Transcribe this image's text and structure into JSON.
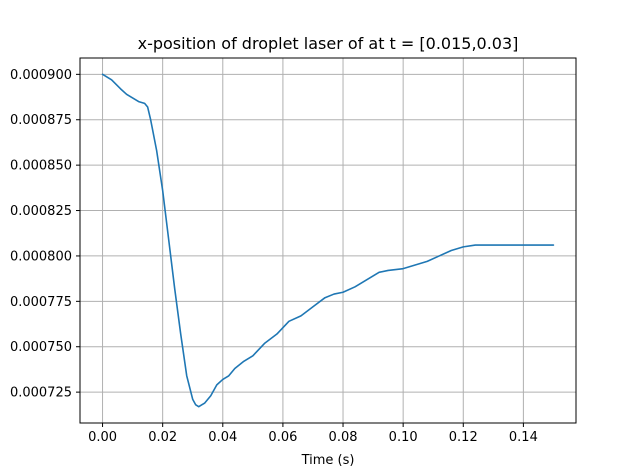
{
  "chart_data": {
    "type": "line",
    "title": "x-position of droplet laser of at t = [0.015,0.03]",
    "xlabel": "Time (s)",
    "ylabel": "",
    "xlim": [
      -0.0075,
      0.1575
    ],
    "ylim": [
      0.000708,
      0.000909
    ],
    "xticks": [
      0.0,
      0.02,
      0.04,
      0.06,
      0.08,
      0.1,
      0.12,
      0.14
    ],
    "xtick_labels": [
      "0.00",
      "0.02",
      "0.04",
      "0.06",
      "0.08",
      "0.10",
      "0.12",
      "0.14"
    ],
    "yticks": [
      0.000725,
      0.00075,
      0.000775,
      0.0008,
      0.000825,
      0.00085,
      0.000875,
      0.0009
    ],
    "ytick_labels": [
      "0.000725",
      "0.000750",
      "0.000775",
      "0.000800",
      "0.000825",
      "0.000850",
      "0.000875",
      "0.000900"
    ],
    "grid": true,
    "line_color": "#1f77b4",
    "grid_color": "#b0b0b0",
    "series": [
      {
        "x": [
          0.0,
          0.003,
          0.006,
          0.008,
          0.01,
          0.012,
          0.014,
          0.015,
          0.016,
          0.018,
          0.02,
          0.022,
          0.024,
          0.026,
          0.028,
          0.03,
          0.031,
          0.032,
          0.033,
          0.034,
          0.036,
          0.038,
          0.04,
          0.042,
          0.044,
          0.047,
          0.05,
          0.054,
          0.058,
          0.062,
          0.066,
          0.07,
          0.074,
          0.077,
          0.08,
          0.084,
          0.088,
          0.092,
          0.095,
          0.1,
          0.104,
          0.108,
          0.112,
          0.116,
          0.12,
          0.124,
          0.127,
          0.13,
          0.135,
          0.14,
          0.145,
          0.15
        ],
        "y": [
          0.0009,
          0.000897,
          0.000892,
          0.000889,
          0.000887,
          0.000885,
          0.000884,
          0.000882,
          0.000875,
          0.000858,
          0.000836,
          0.000809,
          0.000782,
          0.000757,
          0.000734,
          0.000721,
          0.000718,
          0.000717,
          0.000718,
          0.000719,
          0.000723,
          0.000729,
          0.000732,
          0.000734,
          0.000738,
          0.000742,
          0.000745,
          0.000752,
          0.000757,
          0.000764,
          0.000767,
          0.000772,
          0.000777,
          0.000779,
          0.00078,
          0.000783,
          0.000787,
          0.000791,
          0.000792,
          0.000793,
          0.000795,
          0.000797,
          0.0008,
          0.000803,
          0.000805,
          0.000806,
          0.000806,
          0.000806,
          0.000806,
          0.000806,
          0.000806,
          0.000806
        ]
      }
    ]
  }
}
